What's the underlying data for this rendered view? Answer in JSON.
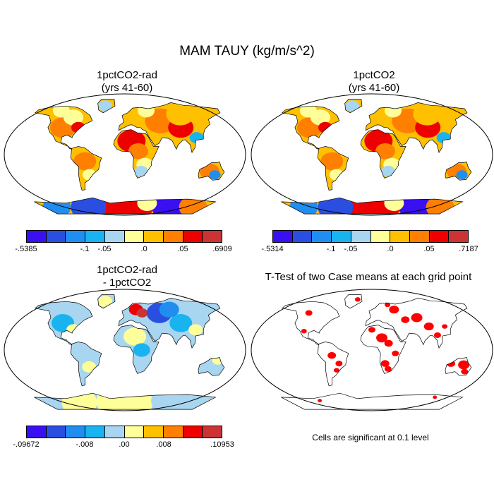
{
  "main_title": "MAM TAUY (kg/m/s^2)",
  "panels": [
    {
      "title": "1pctCO2-rad\n(yrs 41-60)",
      "palette": "anomaly"
    },
    {
      "title": "1pctCO2\n(yrs 41-60)",
      "palette": "anomaly"
    },
    {
      "title": "1pctCO2-rad\n- 1pctCO2",
      "palette": "difference"
    },
    {
      "title": "T-Test of two Case means at each grid point",
      "palette": "significance"
    }
  ],
  "colorbars": [
    {
      "labels": [
        "-.5385",
        "-.1",
        "-.05",
        ".0",
        ".05",
        ".6909"
      ]
    },
    {
      "labels": [
        "-.5314",
        "-.1",
        "-.05",
        ".0",
        ".05",
        ".7187"
      ]
    },
    {
      "labels": [
        "-.09672",
        "-.008",
        ".00",
        ".008",
        ".10953"
      ]
    }
  ],
  "colors": [
    "#3a0ff2",
    "#2a4fe0",
    "#1f8ef0",
    "#19b4f0",
    "#a8d5f0",
    "#ffff99",
    "#ffc000",
    "#ff7f00",
    "#ee0000",
    "#cc3333"
  ],
  "significance_color": "#ff0000",
  "significance_note": "Cells are significant at 0.1 level"
}
